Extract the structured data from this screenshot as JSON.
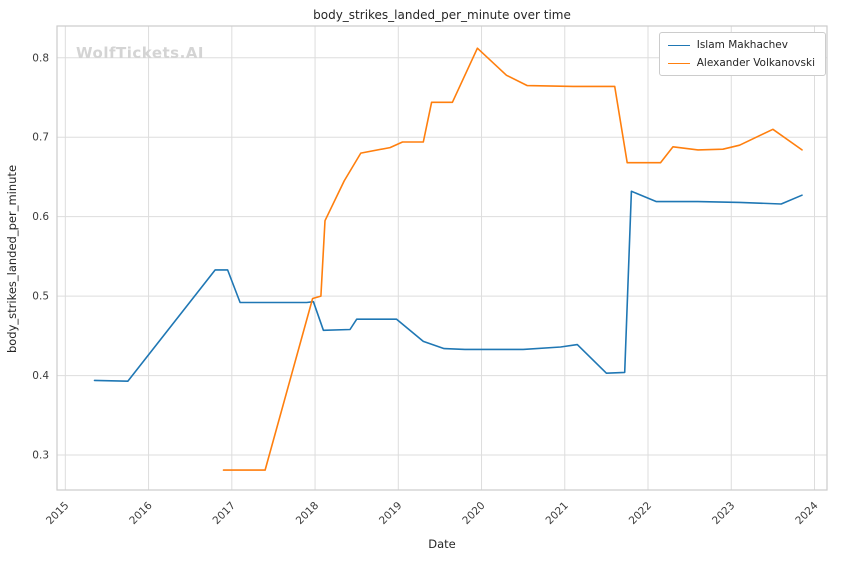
{
  "figure": {
    "title": "body_strikes_landed_per_minute over time",
    "watermark": "WolfTickets.AI"
  },
  "chart_data": {
    "type": "line",
    "title": "body_strikes_landed_per_minute over time",
    "xlabel": "Date",
    "ylabel": "body_strikes_landed_per_minute",
    "xlim": [
      2014.9,
      2024.15
    ],
    "ylim": [
      0.256,
      0.84
    ],
    "xticks": [
      2015,
      2016,
      2017,
      2018,
      2019,
      2020,
      2021,
      2022,
      2023,
      2024
    ],
    "yticks": [
      0.3,
      0.4,
      0.5,
      0.6,
      0.7,
      0.8
    ],
    "grid": true,
    "legend_position": "upper right",
    "series": [
      {
        "name": "Islam Makhachev",
        "color": "#1f77b4",
        "points": [
          [
            2015.35,
            0.394
          ],
          [
            2015.75,
            0.393
          ],
          [
            2016.8,
            0.533
          ],
          [
            2016.95,
            0.533
          ],
          [
            2017.1,
            0.492
          ],
          [
            2017.9,
            0.492
          ],
          [
            2017.98,
            0.493
          ],
          [
            2018.1,
            0.457
          ],
          [
            2018.42,
            0.458
          ],
          [
            2018.5,
            0.471
          ],
          [
            2018.98,
            0.471
          ],
          [
            2019.3,
            0.443
          ],
          [
            2019.55,
            0.434
          ],
          [
            2019.8,
            0.433
          ],
          [
            2020.5,
            0.433
          ],
          [
            2020.95,
            0.436
          ],
          [
            2021.15,
            0.439
          ],
          [
            2021.5,
            0.403
          ],
          [
            2021.72,
            0.404
          ],
          [
            2021.8,
            0.632
          ],
          [
            2022.1,
            0.619
          ],
          [
            2022.6,
            0.619
          ],
          [
            2023.1,
            0.618
          ],
          [
            2023.6,
            0.616
          ],
          [
            2023.85,
            0.627
          ]
        ]
      },
      {
        "name": "Alexander Volkanovski",
        "color": "#ff7f0e",
        "points": [
          [
            2016.9,
            0.281
          ],
          [
            2017.4,
            0.281
          ],
          [
            2017.97,
            0.497
          ],
          [
            2018.07,
            0.5
          ],
          [
            2018.12,
            0.595
          ],
          [
            2018.35,
            0.645
          ],
          [
            2018.55,
            0.68
          ],
          [
            2018.9,
            0.687
          ],
          [
            2019.05,
            0.694
          ],
          [
            2019.3,
            0.694
          ],
          [
            2019.4,
            0.744
          ],
          [
            2019.65,
            0.744
          ],
          [
            2019.95,
            0.812
          ],
          [
            2020.3,
            0.778
          ],
          [
            2020.55,
            0.765
          ],
          [
            2021.1,
            0.764
          ],
          [
            2021.6,
            0.764
          ],
          [
            2021.75,
            0.668
          ],
          [
            2022.15,
            0.668
          ],
          [
            2022.3,
            0.688
          ],
          [
            2022.6,
            0.684
          ],
          [
            2022.9,
            0.685
          ],
          [
            2023.1,
            0.69
          ],
          [
            2023.5,
            0.71
          ],
          [
            2023.85,
            0.684
          ]
        ]
      }
    ]
  }
}
